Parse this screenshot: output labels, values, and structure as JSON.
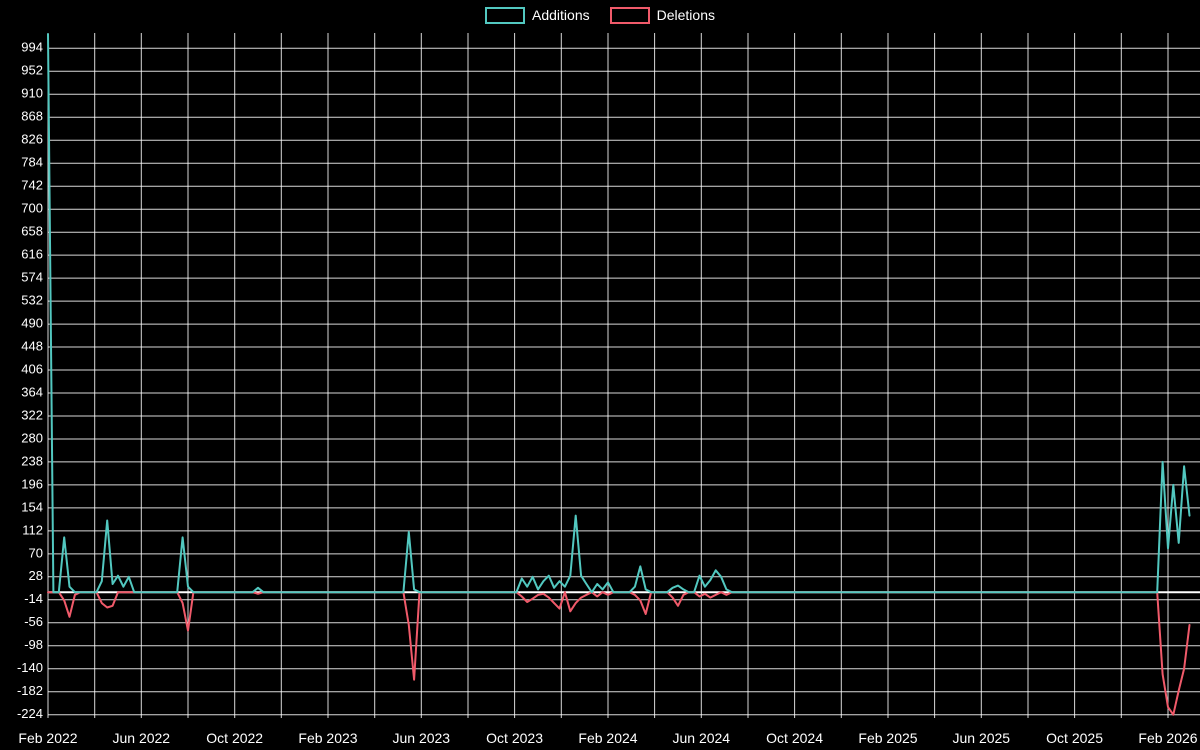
{
  "chart_data": {
    "type": "line",
    "background_color": "#000000",
    "grid": true,
    "legend_position": "top-center",
    "x_tick_labels": [
      "Feb 2022",
      "Jun 2022",
      "Oct 2022",
      "Feb 2023",
      "Jun 2023",
      "Oct 2023",
      "Feb 2024",
      "Jun 2024",
      "Oct 2024",
      "Feb 2025",
      "Jun 2025",
      "Oct 2025",
      "Feb 2026"
    ],
    "y_ticks": [
      994,
      952,
      910,
      868,
      826,
      784,
      742,
      700,
      658,
      616,
      574,
      532,
      490,
      448,
      406,
      364,
      322,
      280,
      238,
      196,
      154,
      112,
      70,
      28,
      -14,
      -56,
      -98,
      -140,
      -182,
      -224
    ],
    "y_tick_step": 42,
    "ylim": [
      -230,
      1022
    ],
    "weeks_total": 213,
    "x_tick_spacing_weeks": 17.3333,
    "series": [
      {
        "name": "Additions",
        "color": "#52c8c0",
        "weekly_values_sparse": {
          "0": 1020,
          "3": 100,
          "4": 10,
          "10": 20,
          "11": 131,
          "12": 15,
          "13": 30,
          "14": 10,
          "15": 28,
          "25": 100,
          "26": 10,
          "39": 8,
          "67": 110,
          "68": 5,
          "88": 25,
          "89": 10,
          "90": 28,
          "91": 5,
          "92": 20,
          "93": 30,
          "94": 8,
          "95": 20,
          "96": 10,
          "97": 30,
          "98": 140,
          "99": 30,
          "100": 15,
          "102": 15,
          "103": 5,
          "104": 18,
          "109": 10,
          "110": 47,
          "111": 5,
          "116": 8,
          "117": 12,
          "118": 5,
          "121": 30,
          "122": 10,
          "123": 22,
          "124": 40,
          "125": 28,
          "126": 5,
          "207": 238,
          "208": 80,
          "209": 196,
          "210": 90,
          "211": 230,
          "212": 140
        }
      },
      {
        "name": "Deletions",
        "color": "#f05a6a",
        "weekly_values_sparse": {
          "3": -15,
          "4": -45,
          "5": -5,
          "10": -20,
          "11": -28,
          "12": -25,
          "25": -20,
          "26": -70,
          "39": -3,
          "67": -60,
          "68": -160,
          "88": -8,
          "89": -18,
          "90": -12,
          "91": -5,
          "92": -3,
          "93": -10,
          "94": -20,
          "95": -30,
          "97": -35,
          "98": -20,
          "99": -10,
          "100": -5,
          "102": -8,
          "104": -5,
          "109": -5,
          "110": -15,
          "111": -40,
          "116": -10,
          "117": -25,
          "118": -5,
          "121": -8,
          "122": -3,
          "123": -10,
          "124": -5,
          "126": -5,
          "207": -150,
          "208": -210,
          "209": -224,
          "210": -180,
          "211": -140,
          "212": -60
        }
      }
    ]
  }
}
